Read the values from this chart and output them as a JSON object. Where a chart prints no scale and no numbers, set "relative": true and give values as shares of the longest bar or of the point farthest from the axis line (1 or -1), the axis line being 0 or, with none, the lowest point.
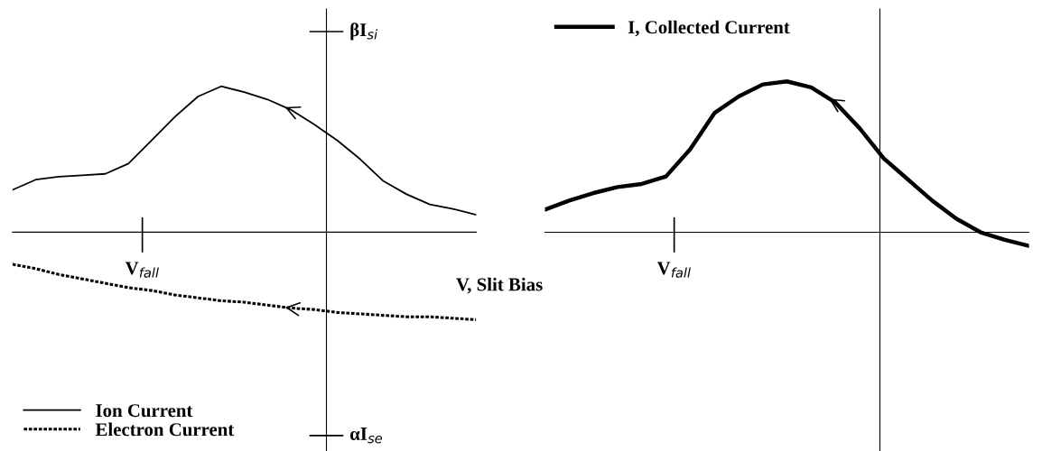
{
  "chart_data": [
    {
      "type": "line",
      "xlabel": "V, Slit Bias",
      "categories": [
        null,
        null,
        null,
        null,
        null,
        null,
        null,
        null,
        null,
        null,
        null,
        null,
        null,
        null,
        null,
        null,
        null,
        null,
        null,
        null,
        null
      ],
      "relative": true,
      "annotations": [
        "βI$_{si}$",
        "αI$_{se}$",
        "V$_{fall}$"
      ],
      "legend": "bottom left",
      "marker": "none",
      "series": [
        {
          "name": "Ion Current",
          "color": "#000000",
          "line_style": "solid",
          "values": [
            0.29,
            0.36,
            0.38,
            0.39,
            0.4,
            0.47,
            0.63,
            0.79,
            0.93,
            1.0,
            0.96,
            0.91,
            0.84,
            0.74,
            0.63,
            0.5,
            0.35,
            0.26,
            0.19,
            0.16,
            0.12
          ]
        },
        {
          "name": "Electron Current",
          "color": "#000000",
          "line_style": "dotted",
          "values": [
            -0.22,
            -0.25,
            -0.29,
            -0.32,
            -0.35,
            -0.38,
            -0.4,
            -0.43,
            -0.45,
            -0.47,
            -0.48,
            -0.5,
            -0.52,
            -0.53,
            -0.55,
            -0.56,
            -0.57,
            -0.58,
            -0.58,
            -0.59,
            -0.6
          ]
        }
      ]
    },
    {
      "type": "line",
      "relative": true,
      "categories": [
        null,
        null,
        null,
        null,
        null,
        null,
        null,
        null,
        null,
        null,
        null,
        null,
        null,
        null,
        null,
        null,
        null,
        null,
        null,
        null,
        null
      ],
      "annotations": [
        "V$_{fall}$"
      ],
      "legend": "top left",
      "marker": "none",
      "series": [
        {
          "name": "I, Collected Current",
          "color": "#000000",
          "line_style": "solid",
          "values": [
            0.15,
            0.21,
            0.26,
            0.3,
            0.32,
            0.37,
            0.55,
            0.79,
            0.9,
            0.98,
            1.0,
            0.96,
            0.86,
            0.69,
            0.49,
            0.35,
            0.21,
            0.09,
            0.0,
            -0.05,
            -0.09
          ]
        }
      ]
    }
  ]
}
